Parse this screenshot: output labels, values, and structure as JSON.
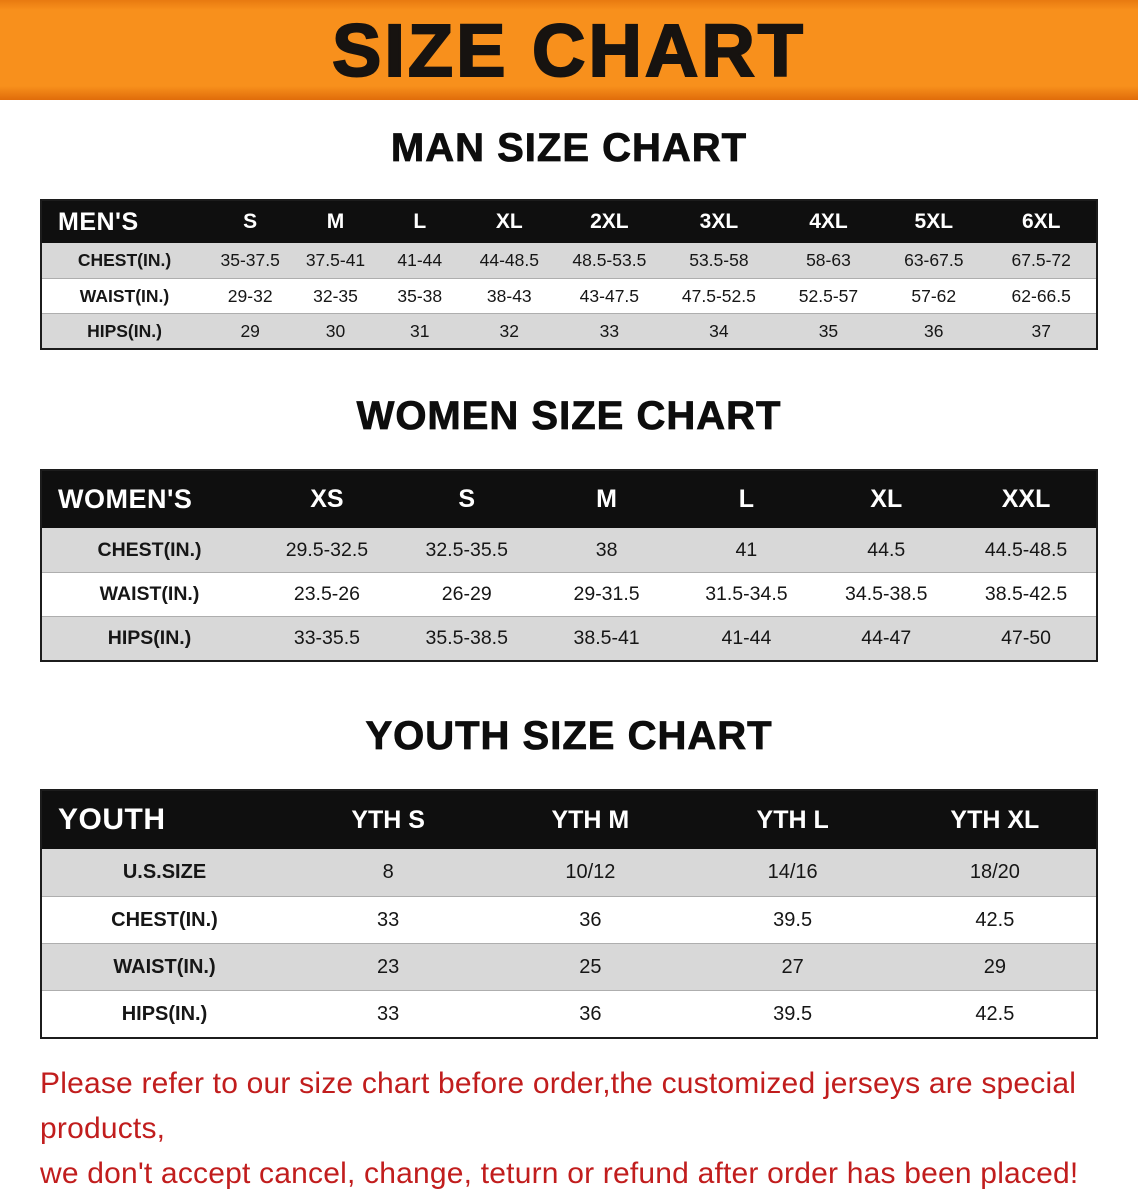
{
  "banner": {
    "title": "SIZE CHART"
  },
  "tables": {
    "man": {
      "title": "MAN SIZE CHART",
      "corner": "MEN'S",
      "columns": [
        "S",
        "M",
        "L",
        "XL",
        "2XL",
        "3XL",
        "4XL",
        "5XL",
        "6XL"
      ],
      "rows": [
        {
          "label": "CHEST(IN.)",
          "values": [
            "35-37.5",
            "37.5-41",
            "41-44",
            "44-48.5",
            "48.5-53.5",
            "53.5-58",
            "58-63",
            "63-67.5",
            "67.5-72"
          ]
        },
        {
          "label": "WAIST(IN.)",
          "values": [
            "29-32",
            "32-35",
            "35-38",
            "38-43",
            "43-47.5",
            "47.5-52.5",
            "52.5-57",
            "57-62",
            "62-66.5"
          ]
        },
        {
          "label": "HIPS(IN.)",
          "values": [
            "29",
            "30",
            "31",
            "32",
            "33",
            "34",
            "35",
            "36",
            "37"
          ]
        }
      ]
    },
    "women": {
      "title": "WOMEN SIZE CHART",
      "corner": "WOMEN'S",
      "columns": [
        "XS",
        "S",
        "M",
        "L",
        "XL",
        "XXL"
      ],
      "rows": [
        {
          "label": "CHEST(IN.)",
          "values": [
            "29.5-32.5",
            "32.5-35.5",
            "38",
            "41",
            "44.5",
            "44.5-48.5"
          ]
        },
        {
          "label": "WAIST(IN.)",
          "values": [
            "23.5-26",
            "26-29",
            "29-31.5",
            "31.5-34.5",
            "34.5-38.5",
            "38.5-42.5"
          ]
        },
        {
          "label": "HIPS(IN.)",
          "values": [
            "33-35.5",
            "35.5-38.5",
            "38.5-41",
            "41-44",
            "44-47",
            "47-50"
          ]
        }
      ]
    },
    "youth": {
      "title": "YOUTH SIZE CHART",
      "corner": "YOUTH",
      "columns": [
        "YTH S",
        "YTH M",
        "YTH L",
        "YTH XL"
      ],
      "rows": [
        {
          "label": "U.S.SIZE",
          "values": [
            "8",
            "10/12",
            "14/16",
            "18/20"
          ]
        },
        {
          "label": "CHEST(IN.)",
          "values": [
            "33",
            "36",
            "39.5",
            "42.5"
          ]
        },
        {
          "label": "WAIST(IN.)",
          "values": [
            "23",
            "25",
            "27",
            "29"
          ]
        },
        {
          "label": "HIPS(IN.)",
          "values": [
            "33",
            "36",
            "39.5",
            "42.5"
          ]
        }
      ]
    }
  },
  "disclaimer": {
    "line1": "Please refer to our size chart before order,the customized jerseys are special products,",
    "line2": "we don't accept cancel, change, teturn or refund after order has been placed!"
  },
  "colors": {
    "banner_bg": "#f8901c",
    "table_header_bg": "#0f0f0f",
    "row_alt_bg": "#d8d8d8",
    "disclaimer_text": "#c11d1d"
  }
}
